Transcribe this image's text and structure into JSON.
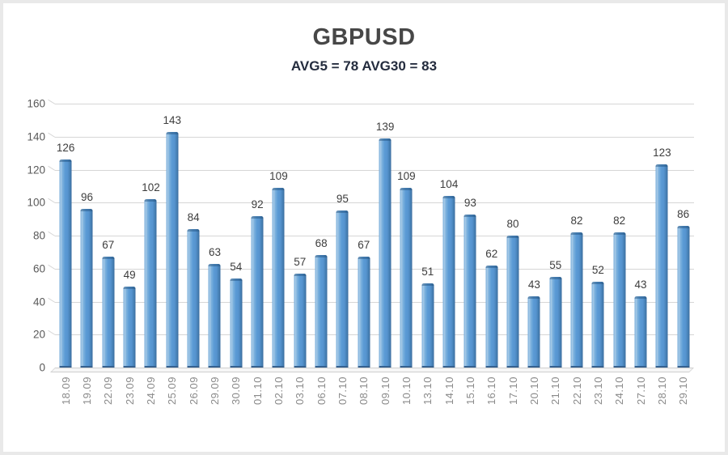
{
  "header": {
    "title": "GBPUSD",
    "subtitle": "AVG5 = 78 AVG30 = 83"
  },
  "chart_data": {
    "type": "bar",
    "title": "GBPUSD",
    "subtitle": "AVG5 = 78 AVG30 = 83",
    "categories": [
      "18.09",
      "19.09",
      "22.09",
      "23.09",
      "24.09",
      "25.09",
      "26.09",
      "29.09",
      "30.09",
      "01.10",
      "02.10",
      "03.10",
      "06.10",
      "07.10",
      "08.10",
      "09.10",
      "10.10",
      "13.10",
      "14.10",
      "15.10",
      "16.10",
      "17.10",
      "20.10",
      "21.10",
      "22.10",
      "23.10",
      "24.10",
      "27.10",
      "28.10",
      "29.10"
    ],
    "values": [
      126,
      96,
      67,
      49,
      102,
      143,
      84,
      63,
      54,
      92,
      109,
      57,
      68,
      95,
      67,
      139,
      109,
      51,
      104,
      93,
      62,
      80,
      43,
      55,
      82,
      52,
      82,
      43,
      123,
      86
    ],
    "xlabel": "",
    "ylabel": "",
    "ylim": [
      0,
      160
    ],
    "yticks": [
      0,
      20,
      40,
      60,
      80,
      100,
      120,
      140,
      160
    ],
    "grid": true,
    "legend": false,
    "avg5": 78,
    "avg30": 83,
    "bar_color": "#5b9bd5",
    "bar_edge_color": "#41719c",
    "bar_highlight_color": "#a9cbe8",
    "gridline_color": "#d6d6d6",
    "value_label_color": "#3d3d3d",
    "ytick_color": "#595959",
    "xtick_color": "#8a8a8a",
    "title_color": "#474747",
    "subtitle_color": "#242c3e"
  }
}
